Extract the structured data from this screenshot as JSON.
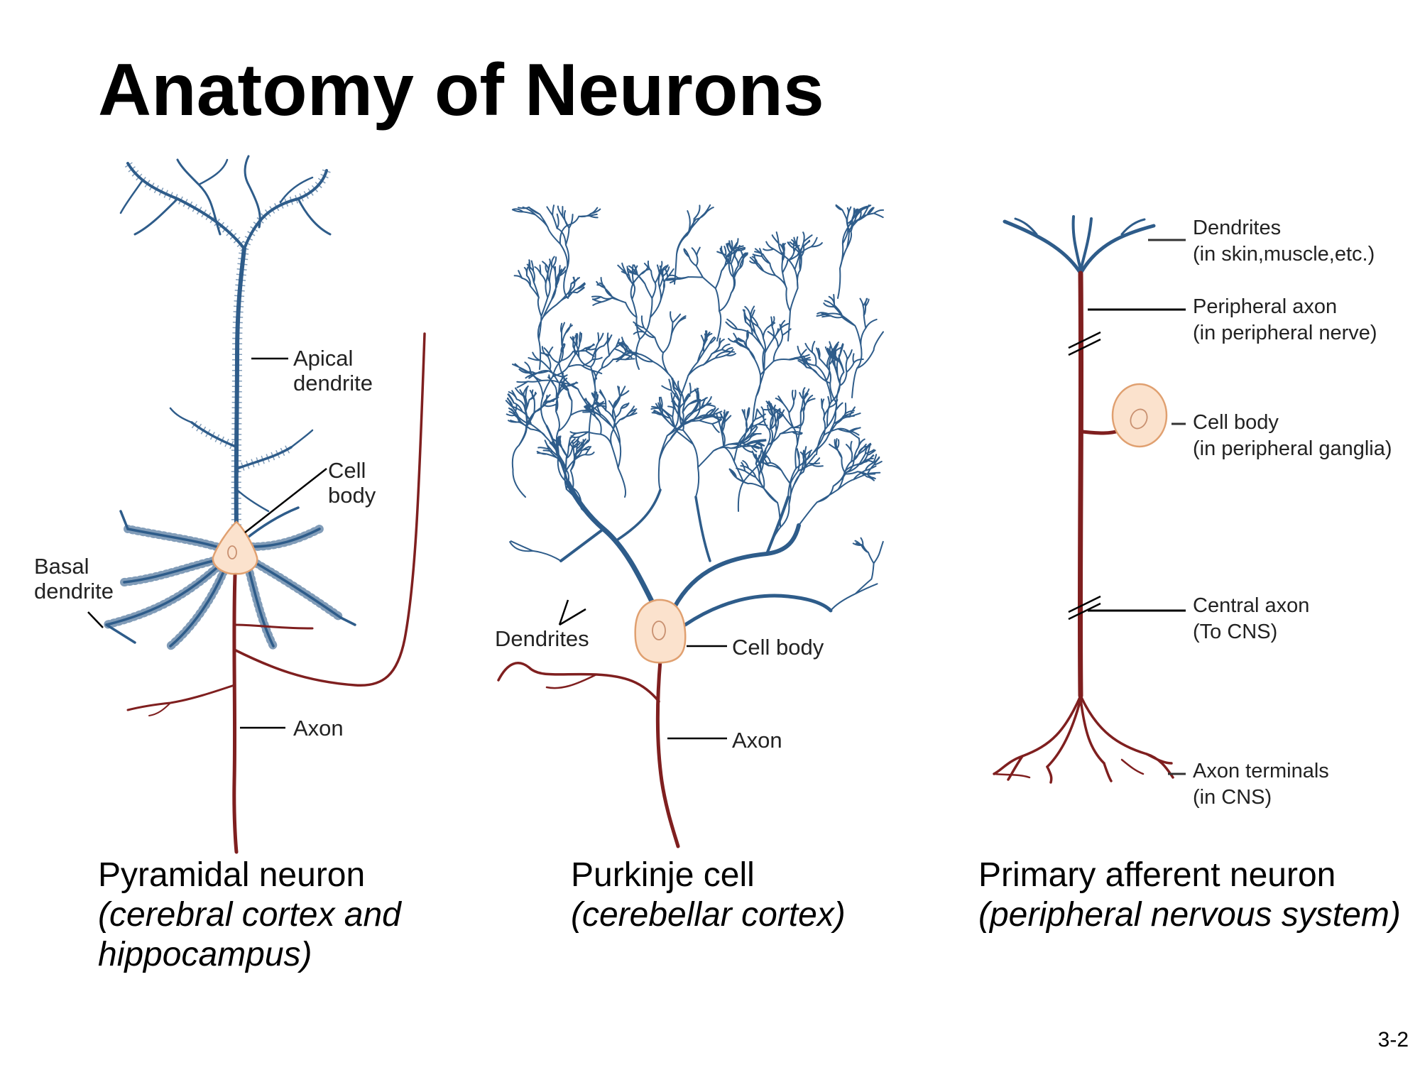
{
  "title": "Anatomy of Neurons",
  "page_number": "3-2",
  "colors": {
    "dendrite": "#2e5c8a",
    "axon": "#7f1f1f",
    "soma_fill": "#fbe2cd",
    "soma_stroke": "#e0a070"
  },
  "pyramidal": {
    "labels": {
      "apical1": "Apical",
      "apical2": "dendrite",
      "cellbody1": "Cell",
      "cellbody2": "body",
      "basal1": "Basal",
      "basal2": "dendrite",
      "axon": "Axon"
    },
    "caption": "Pyramidal neuron",
    "subcaption1": "(cerebral cortex and",
    "subcaption2": "hippocampus)"
  },
  "purkinje": {
    "labels": {
      "dendrites": "Dendrites",
      "cellbody": "Cell body",
      "axon": "Axon"
    },
    "caption": "Purkinje cell",
    "subcaption1": "(cerebellar cortex)"
  },
  "afferent": {
    "labels": {
      "dendrites1": "Dendrites",
      "dendrites2": "(in skin,muscle,etc.)",
      "periph1": "Peripheral axon",
      "periph2": "(in peripheral nerve)",
      "cellbody1": "Cell body",
      "cellbody2": "(in peripheral ganglia)",
      "central1": "Central axon",
      "central2": "(To CNS)",
      "terminals1": "Axon terminals",
      "terminals2": "(in CNS)"
    },
    "caption": "Primary afferent neuron",
    "subcaption1": "(peripheral nervous system)"
  }
}
